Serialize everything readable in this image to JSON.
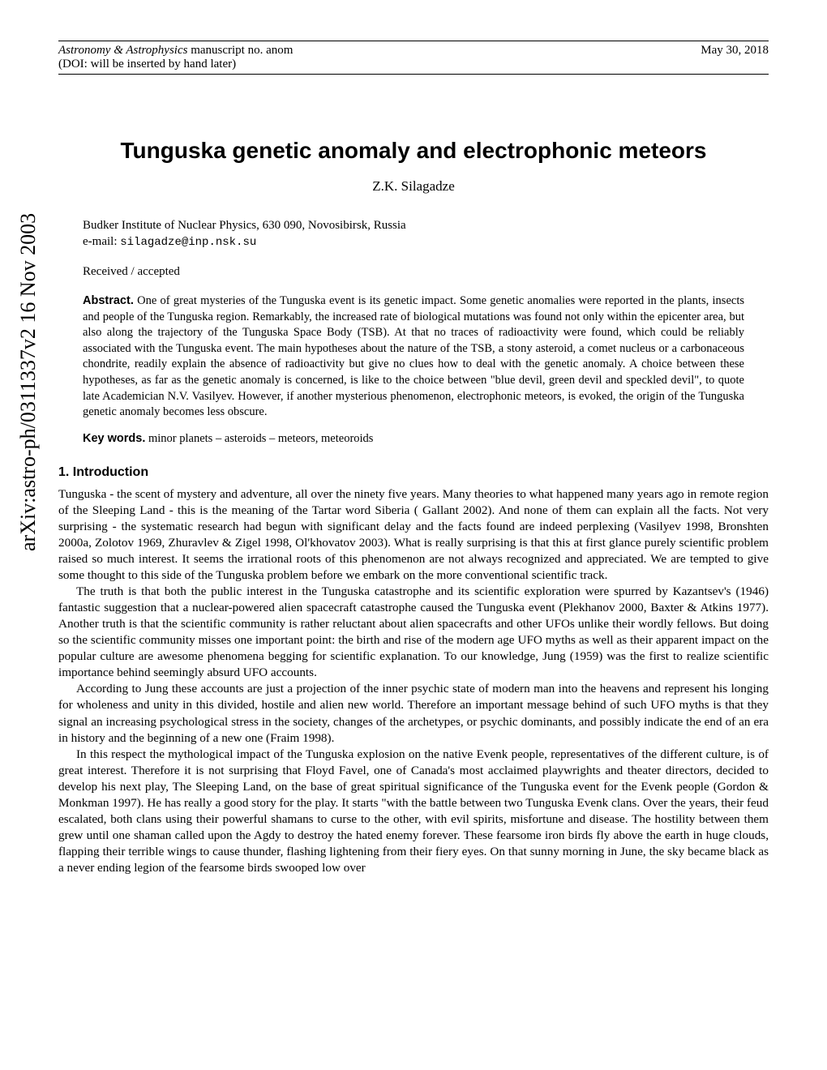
{
  "header": {
    "journal": "Astronomy & Astrophysics",
    "manuscript_label": " manuscript no. anom",
    "date": "May 30, 2018",
    "doi": "(DOI: will be inserted by hand later)"
  },
  "arxiv": "arXiv:astro-ph/0311337v2  16 Nov 2003",
  "title": "Tunguska genetic anomaly and electrophonic meteors",
  "author": "Z.K. Silagadze",
  "affiliation": "Budker Institute of Nuclear Physics, 630 090, Novosibirsk, Russia",
  "email_label": "e-mail: ",
  "email": "silagadze@inp.nsk.su",
  "received": "Received / accepted",
  "abstract_label": "Abstract.",
  "abstract": " One of great mysteries of the Tunguska event is its genetic impact. Some genetic anomalies were reported in the plants, insects and people of the Tunguska region. Remarkably, the increased rate of biological mutations was found not only within the epicenter area, but also along the trajectory of the Tunguska Space Body (TSB). At that no traces of radioactivity were found, which could be reliably associated with the Tunguska event. The main hypotheses about the nature of the TSB, a stony asteroid, a comet nucleus or a carbonaceous chondrite, readily explain the absence of radioactivity but give no clues how to deal with the genetic anomaly. A choice between these hypotheses, as far as the genetic anomaly is concerned, is like to the choice between \"blue devil, green devil and speckled devil\", to quote late Academician N.V. Vasilyev. However, if another mysterious phenomenon, electrophonic meteors, is evoked, the origin of the Tunguska genetic anomaly becomes less obscure.",
  "keywords_label": "Key words.",
  "keywords": " minor planets – asteroids – meteors, meteoroids",
  "section1_heading": "1. Introduction",
  "p1": "Tunguska - the scent of mystery and adventure, all over the ninety five years. Many theories to what happened many years ago in remote region of the Sleeping Land - this is the meaning of the Tartar word Siberia ( Gallant 2002). And none of them can explain all the facts. Not very surprising - the systematic research had begun with significant delay and the facts found are indeed perplexing (Vasilyev 1998, Bronshten 2000a, Zolotov 1969, Zhuravlev & Zigel 1998, Ol'khovatov 2003). What is really surprising is that this at first glance purely scientific problem raised so much interest. It seems the irrational roots of this phenomenon are not always recognized and appreciated. We are tempted to give some thought to this side of the Tunguska problem before we embark on the more conventional scientific track.",
  "p2": "The truth is that both the public interest in the Tunguska catastrophe and its scientific exploration were spurred by Kazantsev's (1946) fantastic suggestion that a nuclear-powered alien spacecraft catastrophe caused the Tunguska event (Plekhanov 2000, Baxter & Atkins 1977). Another truth is that the scientific community is rather reluctant about alien spacecrafts and other UFOs unlike their wordly fellows. But doing so the scientific community misses one important point: the birth and rise of the modern age UFO myths as well as their apparent impact on the popular culture are awesome phenomena begging for scientific explanation. To our knowledge, Jung (1959) was the first to realize scientific importance behind seemingly absurd UFO accounts.",
  "p3": "According to Jung these accounts are just a projection of the inner psychic state of modern man into the heavens and represent his longing for wholeness and unity in this divided, hostile and alien new world. Therefore an important message behind of such UFO myths is that they signal an increasing psychological stress in the society, changes of the archetypes, or psychic dominants, and possibly indicate the end of an era in history and the beginning of a new one (Fraim 1998).",
  "p4": "In this respect the mythological impact of the Tunguska explosion on the native Evenk people, representatives of the different culture, is of great interest. Therefore it is not surprising that Floyd Favel, one of Canada's most acclaimed playwrights and theater directors, decided to develop his next play, The Sleeping Land, on the base of great spiritual significance of the Tunguska event for the Evenk people (Gordon & Monkman 1997). He has really a good story for the play. It starts \"with the battle between two Tunguska Evenk clans. Over the years, their feud escalated, both clans using their powerful shamans to curse to the other, with evil spirits, misfortune and disease. The hostility between them grew until one shaman called upon the Agdy to destroy the hated enemy forever. These fearsome iron birds fly above the earth in huge clouds, flapping their terrible wings to cause thunder, flashing lightening from their fiery eyes. On that sunny morning in June, the sky became black as a never ending legion of the fearsome birds swooped low over"
}
